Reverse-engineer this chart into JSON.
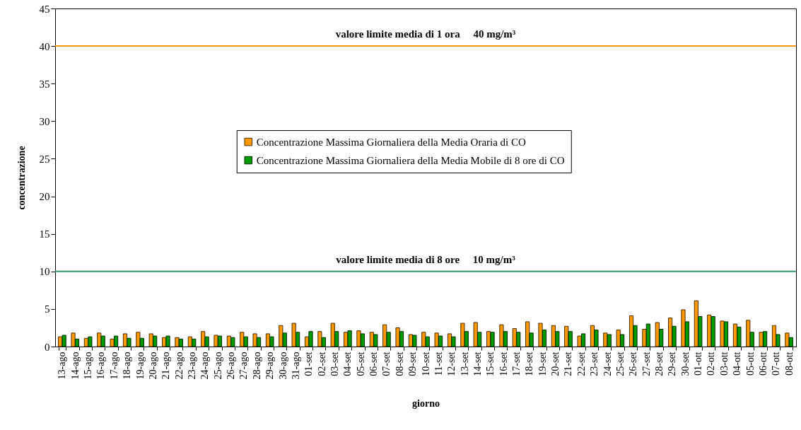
{
  "chart_data": {
    "type": "bar",
    "xlabel": "giorno",
    "ylabel": "concentrazione",
    "categories": [
      "13-ago",
      "14-ago",
      "15-ago",
      "16-ago",
      "17-ago",
      "18-ago",
      "19-ago",
      "20-ago",
      "21-ago",
      "22-ago",
      "23-ago",
      "24-ago",
      "25-ago",
      "26-ago",
      "27-ago",
      "28-ago",
      "29-ago",
      "30-ago",
      "31-ago",
      "01-set",
      "02-set",
      "03-set",
      "04-set",
      "05-set",
      "06-set",
      "07-set",
      "08-set",
      "09-set",
      "10-set",
      "11-set",
      "12-set",
      "13-set",
      "14-set",
      "15-set",
      "16-set",
      "17-set",
      "18-set",
      "19-set",
      "20-set",
      "21-set",
      "22-set",
      "23-set",
      "24-set",
      "25-set",
      "26-set",
      "27-set",
      "28-set",
      "29-set",
      "30-set",
      "01-ott",
      "02-ott",
      "03-ott",
      "04-ott",
      "05-ott",
      "06-ott",
      "07-ott",
      "08-ott"
    ],
    "series": [
      {
        "name": "Concentrazione Massima Giornaliera della Media Oraria di CO",
        "color": "#ff9900",
        "values": [
          1.3,
          1.8,
          1.1,
          1.8,
          1.0,
          1.7,
          1.9,
          1.7,
          1.2,
          1.2,
          1.3,
          2.0,
          1.5,
          1.4,
          1.9,
          1.7,
          1.7,
          2.8,
          3.1,
          1.3,
          2.0,
          3.1,
          1.9,
          2.1,
          1.9,
          2.9,
          2.5,
          1.6,
          1.9,
          1.8,
          1.7,
          3.1,
          3.2,
          2.0,
          2.9,
          2.4,
          3.3,
          3.1,
          2.8,
          2.7,
          1.4,
          2.8,
          1.8,
          2.2,
          4.1,
          2.3,
          3.2,
          3.8,
          4.9,
          6.1,
          4.2,
          3.4,
          3.0,
          3.5,
          1.9,
          2.8,
          1.8
        ]
      },
      {
        "name": "Concentrazione Massima Giornaliera della Media Mobile di 8 ore di CO",
        "color": "#009900",
        "values": [
          1.5,
          1.0,
          1.3,
          1.4,
          1.4,
          1.1,
          1.1,
          1.4,
          1.4,
          1.0,
          1.0,
          1.3,
          1.4,
          1.2,
          1.3,
          1.2,
          1.3,
          1.8,
          1.9,
          2.0,
          1.2,
          2.0,
          2.1,
          1.7,
          1.6,
          1.9,
          2.0,
          1.5,
          1.3,
          1.4,
          1.3,
          2.0,
          1.9,
          1.9,
          2.0,
          1.9,
          1.8,
          2.2,
          2.0,
          2.0,
          1.7,
          2.2,
          1.6,
          1.6,
          2.8,
          3.0,
          2.3,
          2.7,
          3.3,
          4.0,
          4.0,
          3.3,
          2.6,
          1.9,
          2.0,
          1.6,
          1.2
        ]
      }
    ],
    "ylim": [
      0,
      45
    ],
    "yticks": [
      0,
      5,
      10,
      15,
      20,
      25,
      30,
      35,
      40,
      45
    ],
    "grid": false,
    "legend": "center",
    "ref_lines": [
      {
        "axis": "y",
        "value": 40,
        "label": "valore limite media di 1 ora     40 mg/m³",
        "color": "#ff9900"
      },
      {
        "axis": "y",
        "value": 10,
        "label": "valore limite media di 8 ore     10 mg/m³",
        "color": "#339966"
      }
    ]
  }
}
